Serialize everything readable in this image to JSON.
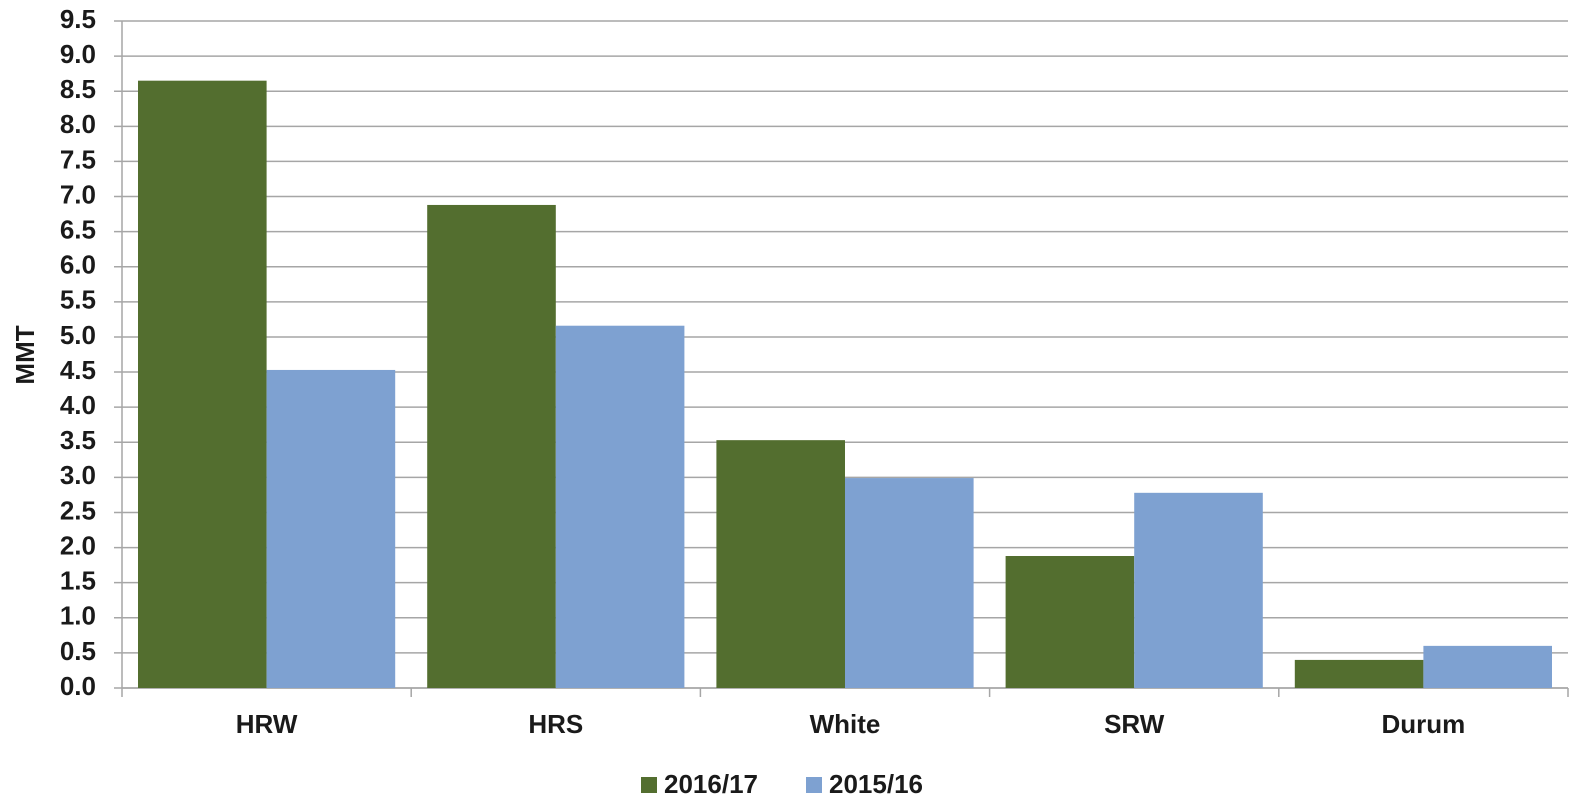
{
  "chart_data": {
    "type": "bar",
    "y_label": "MMT",
    "categories": [
      "HRW",
      "HRS",
      "White",
      "SRW",
      "Durum"
    ],
    "series": [
      {
        "name": "2016/17",
        "color": "#536e2f",
        "values": [
          8.65,
          6.88,
          3.53,
          1.88,
          0.4
        ]
      },
      {
        "name": "2015/16",
        "color": "#7ea1d1",
        "values": [
          4.53,
          5.16,
          2.99,
          2.78,
          0.6
        ]
      }
    ],
    "ylim": [
      0,
      9.5
    ],
    "yticks": [
      {
        "value": 0,
        "label": "0.0"
      },
      0.5,
      {
        "value": 1,
        "label": "1.0"
      },
      1.5,
      {
        "value": 2,
        "label": "2.0"
      },
      2.5,
      {
        "value": 3,
        "label": "3.0"
      },
      3.5,
      {
        "value": 4,
        "label": "4.0"
      },
      4.5,
      {
        "value": 5,
        "label": "5.0"
      },
      5.5,
      {
        "value": 6,
        "label": "6.0"
      },
      6.5,
      {
        "value": 7,
        "label": "7.0"
      },
      7.5,
      {
        "value": 8,
        "label": "8.0"
      },
      8.5,
      {
        "value": 9,
        "label": "9.0"
      },
      9.5
    ],
    "grid": true,
    "legend": "bottom"
  }
}
